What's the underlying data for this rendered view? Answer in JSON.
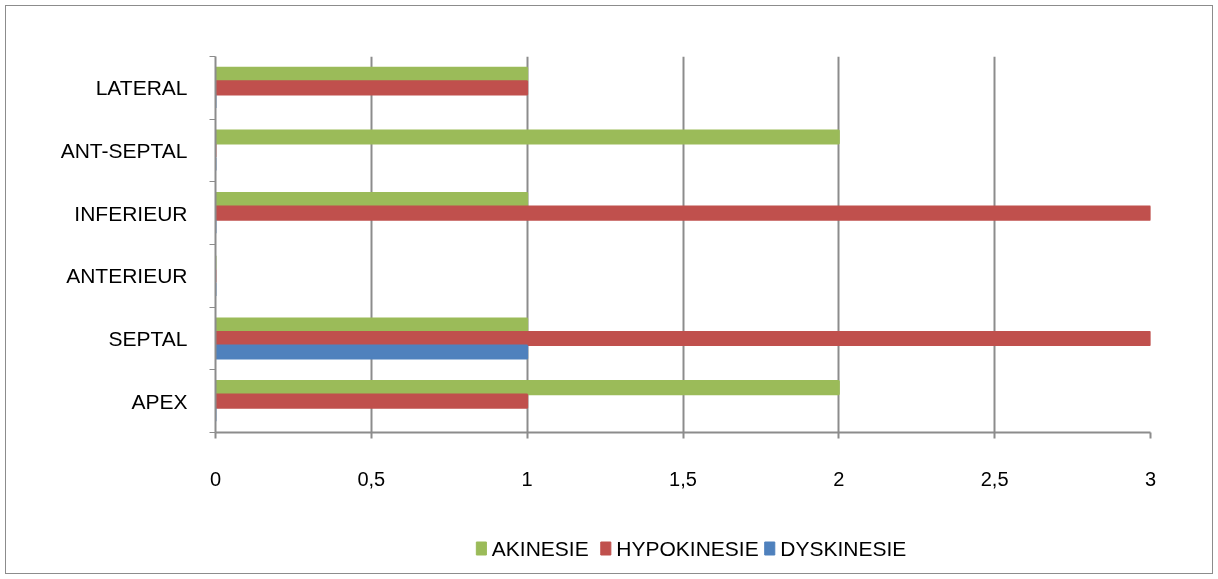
{
  "chart_data": {
    "type": "bar",
    "orientation": "horizontal",
    "categories": [
      "LATERAL",
      "ANT-SEPTAL",
      "INFERIEUR",
      "ANTERIEUR",
      "SEPTAL",
      "APEX"
    ],
    "series": [
      {
        "name": "AKINESIE",
        "color": "#9bbb59",
        "values": [
          1,
          2,
          1,
          0,
          1,
          2
        ]
      },
      {
        "name": "HYPOKINESIE",
        "color": "#c0504d",
        "values": [
          1,
          0,
          3,
          0,
          3,
          1
        ]
      },
      {
        "name": "DYSKINESIE",
        "color": "#4f81bd",
        "values": [
          0,
          0,
          0,
          0,
          1,
          0
        ]
      }
    ],
    "xlim": [
      0,
      3
    ],
    "xticks": [
      0,
      {
        "value": 0.5,
        "label": "0,5"
      },
      1,
      {
        "value": 1.5,
        "label": "1,5"
      },
      2,
      {
        "value": 2.5,
        "label": "2,5"
      },
      3
    ],
    "grid": "x",
    "legend": "bottom"
  }
}
